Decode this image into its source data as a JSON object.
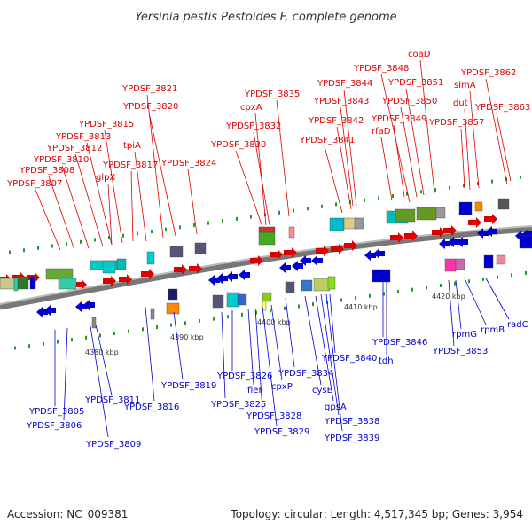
{
  "title": "Yersinia pestis Pestoides F, complete genome",
  "accession": "Accession: NC_009381",
  "summary": "Topology: circular; Length: 4,517,345 bp; Genes: 3,954",
  "colors": {
    "forward": "#dd0000",
    "reverse": "#0000cc",
    "backbone": "#888888"
  },
  "ticks": [
    "4380 kbp",
    "4390 kbp",
    "4400 kbp",
    "4410 kbp",
    "4420 kbp"
  ],
  "top_labels": [
    "YPDSF_3807",
    "YPDSF_3808",
    "YPDSF_3810",
    "YPDSF_3812",
    "YPDSF_3813",
    "YPDSF_3815",
    "glpX",
    "tpiA",
    "YPDSF_3817",
    "YPDSF_3820",
    "YPDSF_3821",
    "YPDSF_3824",
    "YPDSF_3830",
    "YPDSF_3832",
    "cpxA",
    "YPDSF_3835",
    "YPDSF_3841",
    "YPDSF_3842",
    "YPDSF_3843",
    "YPDSF_3844",
    "YPDSF_3848",
    "rfaD",
    "YPDSF_3849",
    "YPDSF_3850",
    "YPDSF_3851",
    "coaD",
    "YPDSF_3857",
    "dut",
    "slmA",
    "YPDSF_3862",
    "YPDSF_3863"
  ],
  "bottom_labels": [
    "YPDSF_3805",
    "YPDSF_3806",
    "YPDSF_3809",
    "YPDSF_3811",
    "YPDSF_3816",
    "YPDSF_3819",
    "YPDSF_3825",
    "YPDSF_3826",
    "fieF",
    "YPDSF_3828",
    "YPDSF_3829",
    "cpxP",
    "YPDSF_3834",
    "cysE",
    "gpsA",
    "YPDSF_3838",
    "YPDSF_3839",
    "YPDSF_3840",
    "YPDSF_3846",
    "tdh",
    "YPDSF_3853",
    "rpmG",
    "rpmB",
    "radC"
  ]
}
